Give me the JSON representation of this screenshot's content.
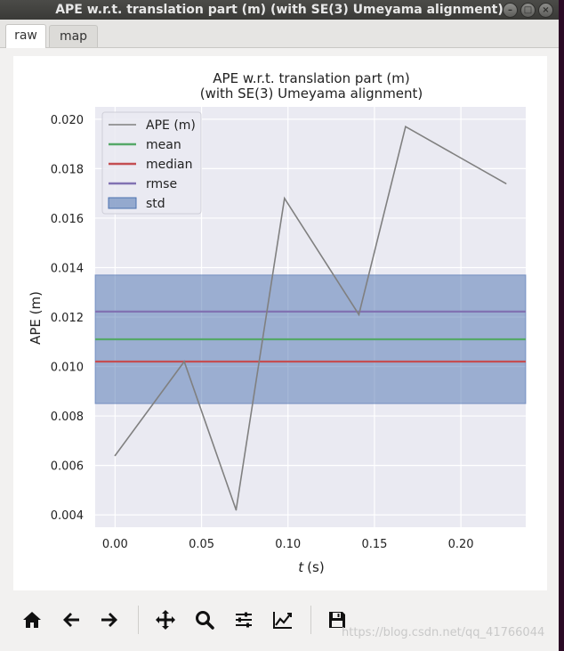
{
  "window": {
    "title": "APE w.r.t. translation part (m) (with SE(3) Umeyama alignment)",
    "controls": [
      "minimize",
      "maximize",
      "close"
    ]
  },
  "tabs": [
    {
      "label": "raw",
      "active": true
    },
    {
      "label": "map",
      "active": false
    }
  ],
  "chart_data": {
    "type": "line",
    "title": "APE w.r.t. translation part (m)",
    "subtitle": "(with SE(3) Umeyama alignment)",
    "xlabel_italic": "t",
    "xlabel_unit": "(s)",
    "ylabel": "APE (m)",
    "xlim": [
      -0.0115,
      0.2375
    ],
    "ylim": [
      0.0035,
      0.0205
    ],
    "xticks": [
      0.0,
      0.05,
      0.1,
      0.15,
      0.2
    ],
    "xtick_labels": [
      "0.00",
      "0.05",
      "0.10",
      "0.15",
      "0.20"
    ],
    "yticks": [
      0.004,
      0.006,
      0.008,
      0.01,
      0.012,
      0.014,
      0.016,
      0.018,
      0.02
    ],
    "ytick_labels": [
      "0.004",
      "0.006",
      "0.008",
      "0.010",
      "0.012",
      "0.014",
      "0.016",
      "0.018",
      "0.020"
    ],
    "grid": true,
    "legend_position": "top-left",
    "series": [
      {
        "name": "APE (m)",
        "color": "#808080",
        "x": [
          0.0,
          0.04,
          0.07,
          0.098,
          0.141,
          0.168,
          0.226
        ],
        "y": [
          0.0064,
          0.0102,
          0.0042,
          0.0168,
          0.0121,
          0.0197,
          0.0174
        ]
      }
    ],
    "stats": {
      "mean": {
        "label": "mean",
        "value": 0.0111,
        "color": "#55a868"
      },
      "median": {
        "label": "median",
        "value": 0.0102,
        "color": "#c44e52"
      },
      "rmse": {
        "label": "rmse",
        "value": 0.01222,
        "color": "#8172b2"
      },
      "std": {
        "label": "std",
        "low": 0.0085,
        "high": 0.0137,
        "color": "#4c72b0"
      }
    }
  },
  "toolbar": {
    "buttons": [
      {
        "name": "home-icon"
      },
      {
        "name": "back-icon"
      },
      {
        "name": "forward-icon"
      },
      {
        "name": "pan-icon"
      },
      {
        "name": "zoom-icon"
      },
      {
        "name": "configure-subplots-icon"
      },
      {
        "name": "edit-axis-icon"
      },
      {
        "name": "save-icon"
      }
    ]
  },
  "watermark": "https://blog.csdn.net/qq_41766044"
}
